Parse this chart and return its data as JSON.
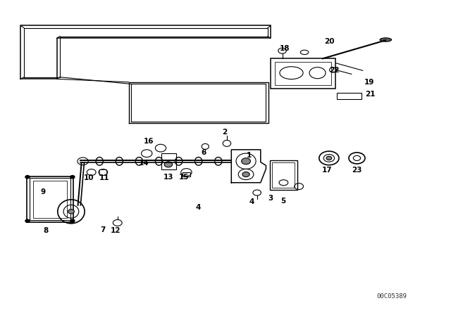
{
  "bg_color": "#ffffff",
  "line_color": "#000000",
  "part_number_text": "00C05389",
  "figsize": [
    6.4,
    4.48
  ],
  "dpi": 100
}
